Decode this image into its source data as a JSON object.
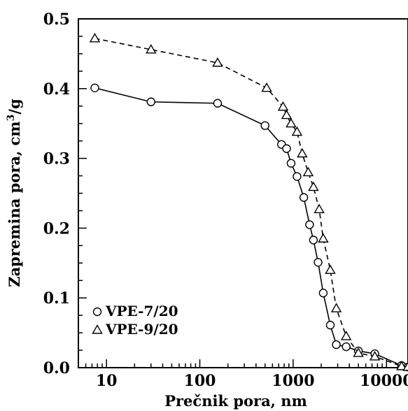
{
  "chart_data": {
    "type": "scatter",
    "title": "",
    "xlabel": "Prečnik pora, nm",
    "ylabel_main": "Zapremina pora, cm",
    "ylabel_sup": "3",
    "ylabel_tail": "/g",
    "xscale": "log",
    "xlim": [
      5,
      17000
    ],
    "ylim": [
      0,
      0.5
    ],
    "grid": false,
    "legend_position": "bottom-left",
    "x_ticks": [
      10,
      100,
      1000,
      10000
    ],
    "x_tick_labels": [
      "10",
      "100",
      "1000",
      "10000"
    ],
    "y_ticks": [
      0.0,
      0.1,
      0.2,
      0.3,
      0.4,
      0.5
    ],
    "y_tick_labels": [
      "0.0",
      "0.1",
      "0.2",
      "0.3",
      "0.4",
      "0.5"
    ],
    "series": [
      {
        "name": "VPE-7/20",
        "marker": "circle",
        "line": "solid",
        "points": [
          [
            7.5,
            0.401
          ],
          [
            30,
            0.381
          ],
          [
            155,
            0.379
          ],
          [
            500,
            0.347
          ],
          [
            750,
            0.32
          ],
          [
            850,
            0.314
          ],
          [
            950,
            0.293
          ],
          [
            1100,
            0.274
          ],
          [
            1300,
            0.244
          ],
          [
            1500,
            0.205
          ],
          [
            1650,
            0.183
          ],
          [
            1850,
            0.151
          ],
          [
            2100,
            0.107
          ],
          [
            2500,
            0.061
          ],
          [
            2900,
            0.033
          ],
          [
            3700,
            0.03
          ],
          [
            5000,
            0.024
          ],
          [
            7500,
            0.02
          ],
          [
            14500,
            0.003
          ],
          [
            17000,
            0.001
          ]
        ]
      },
      {
        "name": "VPE-9/20",
        "marker": "triangle",
        "line": "dashed",
        "points": [
          [
            7.5,
            0.472
          ],
          [
            30,
            0.456
          ],
          [
            155,
            0.437
          ],
          [
            520,
            0.401
          ],
          [
            780,
            0.374
          ],
          [
            850,
            0.362
          ],
          [
            950,
            0.35
          ],
          [
            1100,
            0.338
          ],
          [
            1250,
            0.307
          ],
          [
            1450,
            0.28
          ],
          [
            1650,
            0.259
          ],
          [
            1900,
            0.227
          ],
          [
            2100,
            0.185
          ],
          [
            2500,
            0.14
          ],
          [
            2900,
            0.085
          ],
          [
            3700,
            0.045
          ],
          [
            5000,
            0.021
          ],
          [
            7500,
            0.016
          ],
          [
            14500,
            0.002
          ],
          [
            17000,
            0.001
          ]
        ]
      }
    ]
  }
}
